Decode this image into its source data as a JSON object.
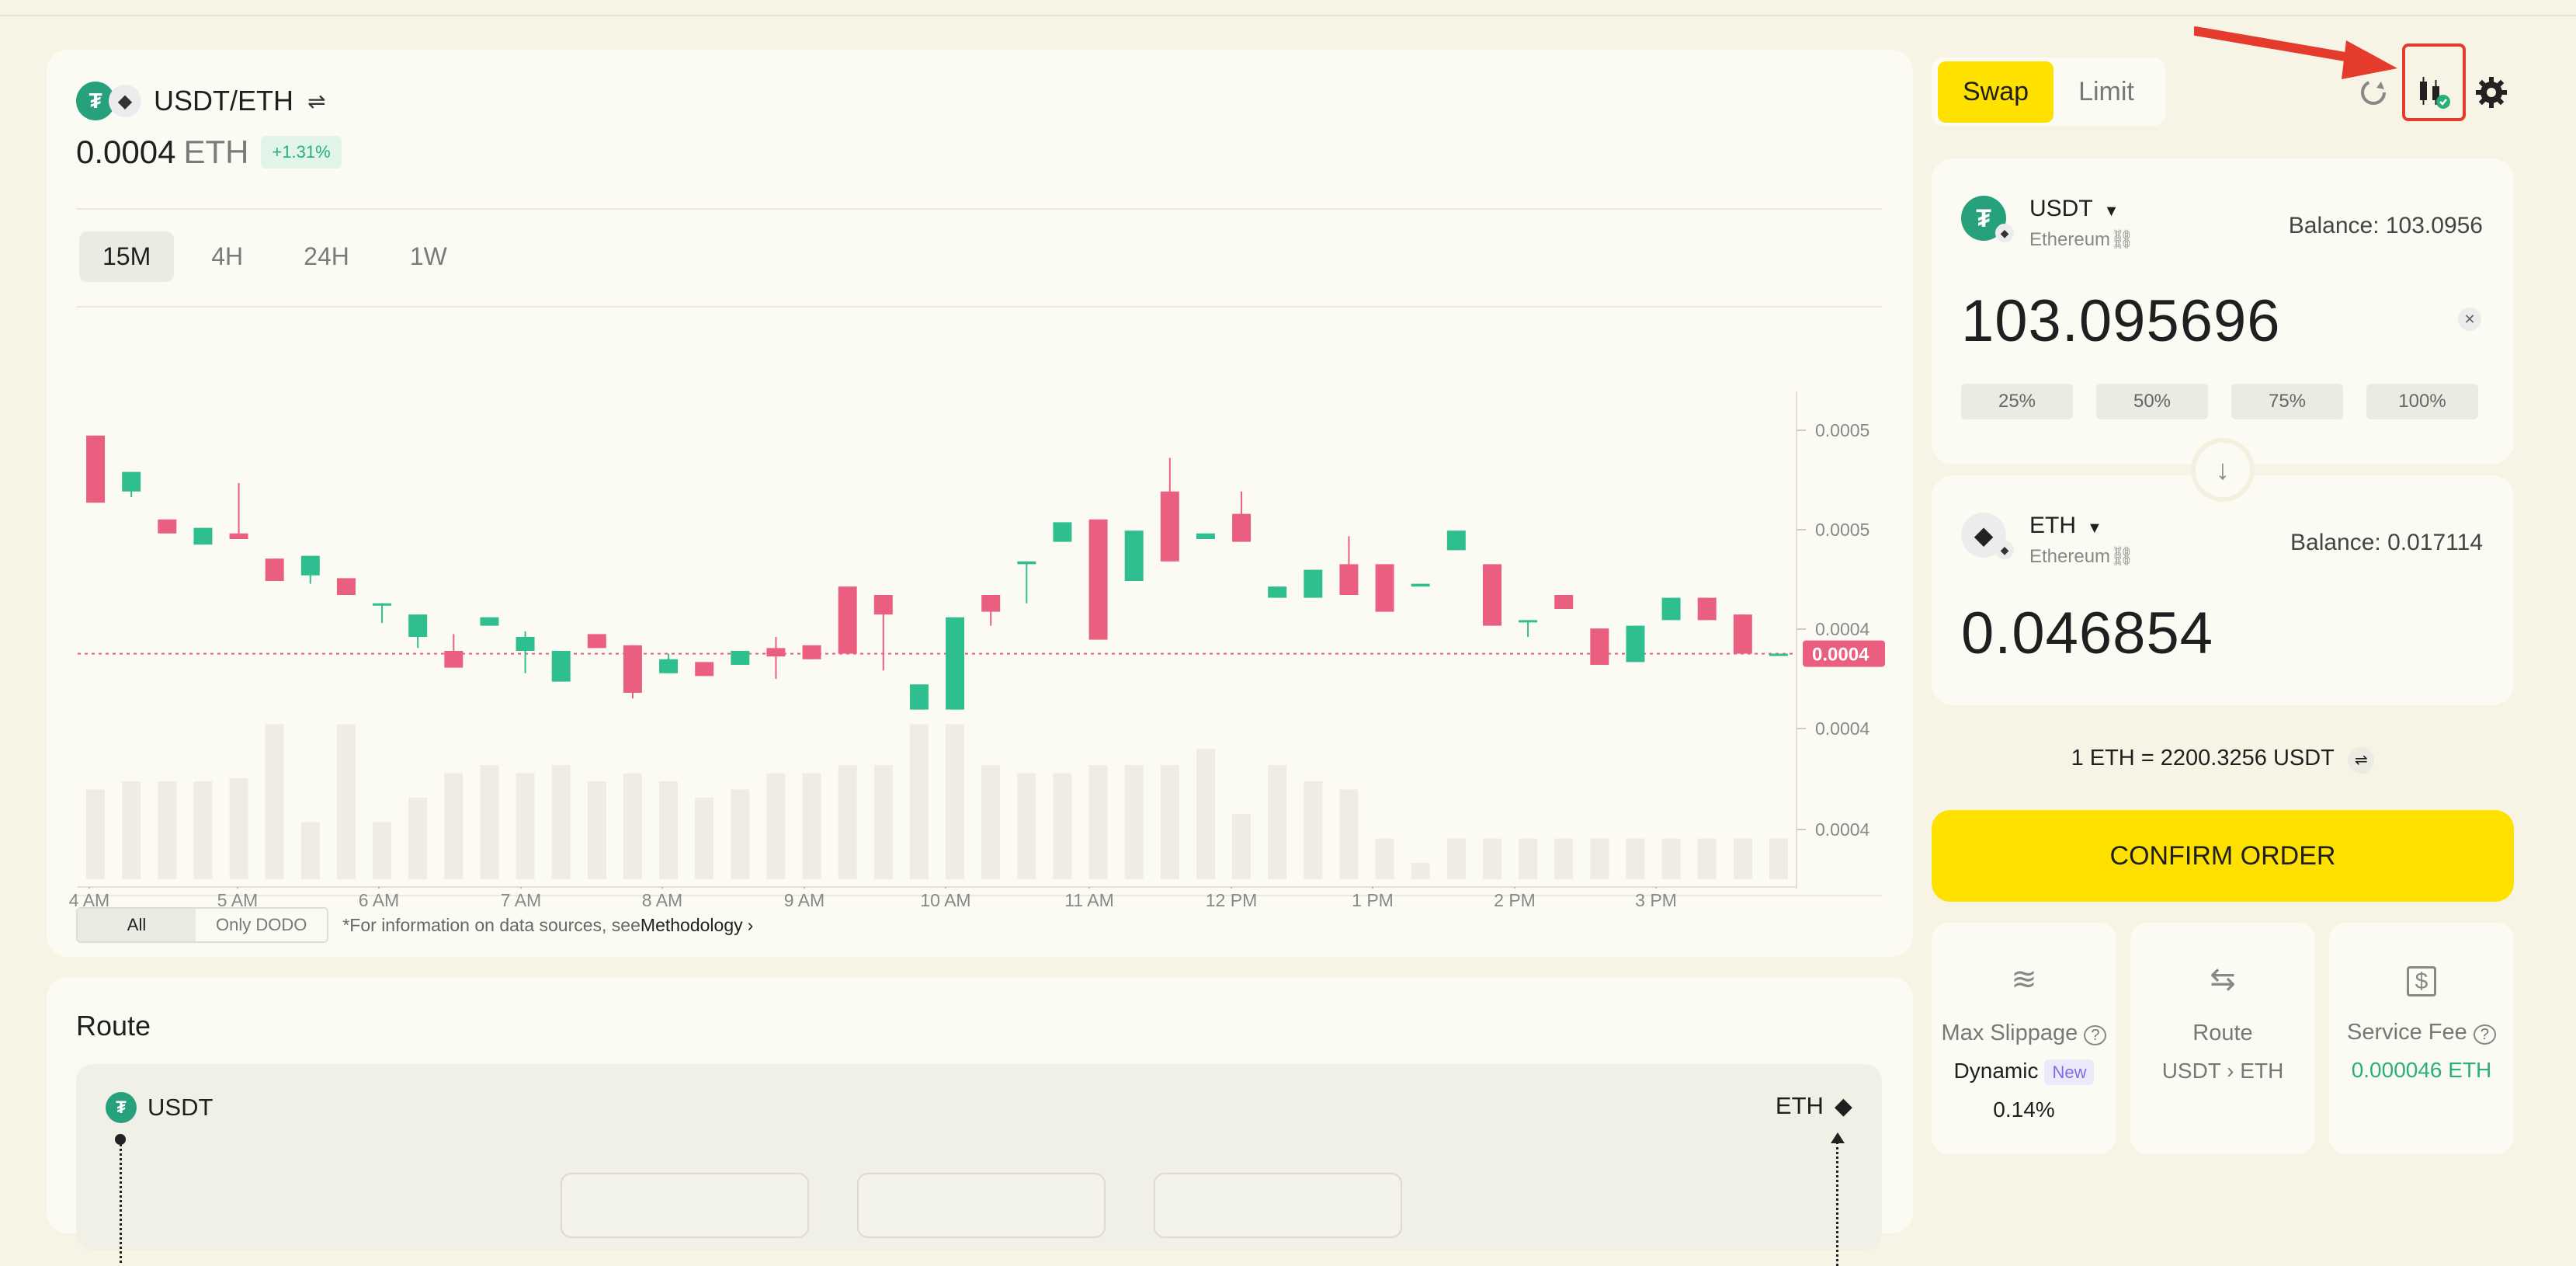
{
  "pair": {
    "name": "USDT/ETH",
    "price": "0.0004",
    "price_unit": "ETH",
    "change": "+1.31%"
  },
  "timeframes": [
    "15M",
    "4H",
    "24H",
    "1W"
  ],
  "active_timeframe": "15M",
  "chart_data": {
    "type": "candlestick",
    "x_tick_labels": [
      "4 AM",
      "5 AM",
      "6 AM",
      "7 AM",
      "8 AM",
      "9 AM",
      "10 AM",
      "11 AM",
      "12 PM",
      "1 PM",
      "2 PM",
      "3 PM"
    ],
    "y_tick_labels": [
      "0.0005",
      "0.0005",
      "0.0004",
      "0.0004",
      "0.0004"
    ],
    "current_price_label": "0.0004",
    "candles_up_color": "#2fbf8f",
    "candles_down_color": "#ea5f80",
    "ylim": [
      0.00035,
      0.00055
    ],
    "candles": [
      {
        "o": 0.000512,
        "c": 0.000488,
        "h": 0.000512,
        "l": 0.000488
      },
      {
        "o": 0.000492,
        "c": 0.000499,
        "h": 0.000499,
        "l": 0.00049
      },
      {
        "o": 0.000482,
        "c": 0.000477,
        "h": 0.000482,
        "l": 0.000477
      },
      {
        "o": 0.000473,
        "c": 0.000479,
        "h": 0.000479,
        "l": 0.000473
      },
      {
        "o": 0.000477,
        "c": 0.000475,
        "h": 0.000495,
        "l": 0.000475
      },
      {
        "o": 0.000468,
        "c": 0.00046,
        "h": 0.000468,
        "l": 0.00046
      },
      {
        "o": 0.000462,
        "c": 0.000469,
        "h": 0.000469,
        "l": 0.000459
      },
      {
        "o": 0.000461,
        "c": 0.000455,
        "h": 0.000461,
        "l": 0.000455
      },
      {
        "o": 0.000452,
        "c": 0.000452,
        "h": 0.000452,
        "l": 0.000445
      },
      {
        "o": 0.00044,
        "c": 0.000448,
        "h": 0.000448,
        "l": 0.000436
      },
      {
        "o": 0.000435,
        "c": 0.000429,
        "h": 0.000441,
        "l": 0.000429
      },
      {
        "o": 0.000444,
        "c": 0.000447,
        "h": 0.000447,
        "l": 0.000444
      },
      {
        "o": 0.000435,
        "c": 0.00044,
        "h": 0.000442,
        "l": 0.000427
      },
      {
        "o": 0.000424,
        "c": 0.000435,
        "h": 0.000435,
        "l": 0.000424
      },
      {
        "o": 0.000441,
        "c": 0.000436,
        "h": 0.000441,
        "l": 0.000436
      },
      {
        "o": 0.000437,
        "c": 0.00042,
        "h": 0.000437,
        "l": 0.000418
      },
      {
        "o": 0.000427,
        "c": 0.000432,
        "h": 0.000434,
        "l": 0.000427
      },
      {
        "o": 0.000431,
        "c": 0.000426,
        "h": 0.000431,
        "l": 0.000426
      },
      {
        "o": 0.00043,
        "c": 0.000435,
        "h": 0.000435,
        "l": 0.00043
      },
      {
        "o": 0.000436,
        "c": 0.000433,
        "h": 0.00044,
        "l": 0.000425
      },
      {
        "o": 0.000437,
        "c": 0.000432,
        "h": 0.000437,
        "l": 0.000432
      },
      {
        "o": 0.000458,
        "c": 0.000434,
        "h": 0.000458,
        "l": 0.000434
      },
      {
        "o": 0.000455,
        "c": 0.000448,
        "h": 0.000455,
        "l": 0.000428
      },
      {
        "o": 0.000414,
        "c": 0.000423,
        "h": 0.000423,
        "l": 0.000414
      },
      {
        "o": 0.000414,
        "c": 0.000447,
        "h": 0.000447,
        "l": 0.000414
      },
      {
        "o": 0.000455,
        "c": 0.000449,
        "h": 0.000455,
        "l": 0.000444
      },
      {
        "o": 0.000466,
        "c": 0.000467,
        "h": 0.000467,
        "l": 0.000452
      },
      {
        "o": 0.000474,
        "c": 0.000481,
        "h": 0.000481,
        "l": 0.000474
      },
      {
        "o": 0.000482,
        "c": 0.000439,
        "h": 0.000482,
        "l": 0.000439
      },
      {
        "o": 0.00046,
        "c": 0.000478,
        "h": 0.000478,
        "l": 0.00046
      },
      {
        "o": 0.000492,
        "c": 0.000467,
        "h": 0.000504,
        "l": 0.000467
      },
      {
        "o": 0.000475,
        "c": 0.000477,
        "h": 0.000477,
        "l": 0.000475
      },
      {
        "o": 0.000484,
        "c": 0.000474,
        "h": 0.000492,
        "l": 0.000474
      },
      {
        "o": 0.000454,
        "c": 0.000458,
        "h": 0.000458,
        "l": 0.000454
      },
      {
        "o": 0.000454,
        "c": 0.000464,
        "h": 0.000464,
        "l": 0.000454
      },
      {
        "o": 0.000466,
        "c": 0.000455,
        "h": 0.000476,
        "l": 0.000455
      },
      {
        "o": 0.000466,
        "c": 0.000449,
        "h": 0.000466,
        "l": 0.000449
      },
      {
        "o": 0.000458,
        "c": 0.000459,
        "h": 0.000459,
        "l": 0.000458
      },
      {
        "o": 0.000471,
        "c": 0.000478,
        "h": 0.000478,
        "l": 0.000471
      },
      {
        "o": 0.000466,
        "c": 0.000444,
        "h": 0.000466,
        "l": 0.000444
      },
      {
        "o": 0.000446,
        "c": 0.000446,
        "h": 0.000446,
        "l": 0.00044
      },
      {
        "o": 0.000455,
        "c": 0.00045,
        "h": 0.000455,
        "l": 0.00045
      },
      {
        "o": 0.000443,
        "c": 0.00043,
        "h": 0.000443,
        "l": 0.00043
      },
      {
        "o": 0.000431,
        "c": 0.000444,
        "h": 0.000444,
        "l": 0.000431
      },
      {
        "o": 0.000446,
        "c": 0.000454,
        "h": 0.000454,
        "l": 0.000446
      },
      {
        "o": 0.000454,
        "c": 0.000446,
        "h": 0.000454,
        "l": 0.000446
      },
      {
        "o": 0.000448,
        "c": 0.000434,
        "h": 0.000448,
        "l": 0.000434
      },
      {
        "o": 0.000434,
        "c": 0.000434,
        "h": 0.000434,
        "l": 0.000434
      }
    ],
    "volume_bars": [
      0.55,
      0.6,
      0.6,
      0.6,
      0.62,
      0.95,
      0.35,
      0.95,
      0.35,
      0.5,
      0.65,
      0.7,
      0.65,
      0.7,
      0.6,
      0.65,
      0.6,
      0.5,
      0.55,
      0.65,
      0.65,
      0.7,
      0.7,
      0.95,
      0.95,
      0.7,
      0.65,
      0.65,
      0.7,
      0.7,
      0.7,
      0.8,
      0.4,
      0.7,
      0.6,
      0.55,
      0.25,
      0.1,
      0.25,
      0.25,
      0.25,
      0.25,
      0.25,
      0.25,
      0.25,
      0.25,
      0.25,
      0.25
    ]
  },
  "source_filter": {
    "options": [
      "All",
      "Only DODO"
    ],
    "selected": "All",
    "note": "*For information on data sources, see",
    "link": "Methodology",
    "link_glyph": "›"
  },
  "route": {
    "title": "Route",
    "from": "USDT",
    "to": "ETH"
  },
  "tabs": [
    "Swap",
    "Limit"
  ],
  "active_tab": "Swap",
  "from_token": {
    "symbol": "USDT",
    "chain": "Ethereum",
    "balance_label": "Balance: 103.0956",
    "amount": "103.095696",
    "percent_buttons": [
      "25%",
      "50%",
      "75%",
      "100%"
    ]
  },
  "to_token": {
    "symbol": "ETH",
    "chain": "Ethereum",
    "balance_label": "Balance: 0.017114",
    "amount": "0.046854"
  },
  "rate": "1 ETH = 2200.3256 USDT",
  "confirm_label": "CONFIRM ORDER",
  "info": {
    "slippage_label": "Max Slippage",
    "slippage_mode": "Dynamic",
    "slippage_badge": "New",
    "slippage_value": "0.14%",
    "route_label": "Route",
    "route_value": "USDT › ETH",
    "fee_label": "Service Fee",
    "fee_value": "0.000046 ETH"
  },
  "colors": {
    "accent": "#ffe100",
    "up": "#2fbf8f",
    "down": "#ea5f80",
    "usdt": "#26a17b",
    "annotation": "#e53b2c"
  },
  "icons": [
    "swap-arrows-icon",
    "refresh-icon",
    "candlestick-chart-icon",
    "gear-icon",
    "dropdown-arrow-icon",
    "link-icon",
    "close-icon",
    "arrow-down-icon",
    "waves-icon",
    "route-icon",
    "dollar-icon",
    "help-icon"
  ]
}
